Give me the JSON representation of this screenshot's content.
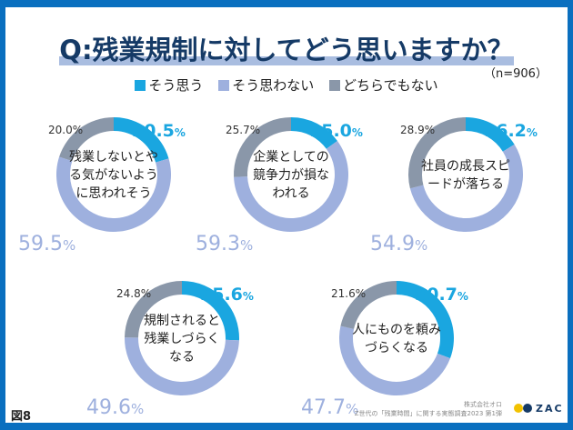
{
  "title": "Q:残業規制に対してどう思いますか？",
  "sample": "（n=906）",
  "figure_label": "図8",
  "source": {
    "company": "株式会社オロ",
    "survey": "Z世代の「残業時間」に関する実態調査2023 第1弾"
  },
  "logo": "ZAC",
  "colors": {
    "agree": "#1aa6e0",
    "disagree": "#9eb0de",
    "neutral": "#8a97a9"
  },
  "chart_data": [
    {
      "type": "pie",
      "donut": true,
      "title": "残業しないとやる気がないように思われそう",
      "legend": "top",
      "series": [
        {
          "name": "そう思う",
          "value": 20.5
        },
        {
          "name": "そう思わない",
          "value": 59.5
        },
        {
          "name": "どちらでもない",
          "value": 20.0
        }
      ]
    },
    {
      "type": "pie",
      "donut": true,
      "title": "企業としての競争力が損なわれる",
      "series": [
        {
          "name": "そう思う",
          "value": 15.0
        },
        {
          "name": "そう思わない",
          "value": 59.3
        },
        {
          "name": "どちらでもない",
          "value": 25.7
        }
      ]
    },
    {
      "type": "pie",
      "donut": true,
      "title": "社員の成長スピードが落ちる",
      "series": [
        {
          "name": "そう思う",
          "value": 16.2
        },
        {
          "name": "そう思わない",
          "value": 54.9
        },
        {
          "name": "どちらでもない",
          "value": 28.9
        }
      ]
    },
    {
      "type": "pie",
      "donut": true,
      "title": "規制されると残業しづらくなる",
      "series": [
        {
          "name": "そう思う",
          "value": 25.6
        },
        {
          "name": "そう思わない",
          "value": 49.6
        },
        {
          "name": "どちらでもない",
          "value": 24.8
        }
      ]
    },
    {
      "type": "pie",
      "donut": true,
      "title": "人にものを頼みづらくなる",
      "series": [
        {
          "name": "そう思う",
          "value": 30.7
        },
        {
          "name": "そう思わない",
          "value": 47.7
        },
        {
          "name": "どちらでもない",
          "value": 21.6
        }
      ]
    }
  ]
}
